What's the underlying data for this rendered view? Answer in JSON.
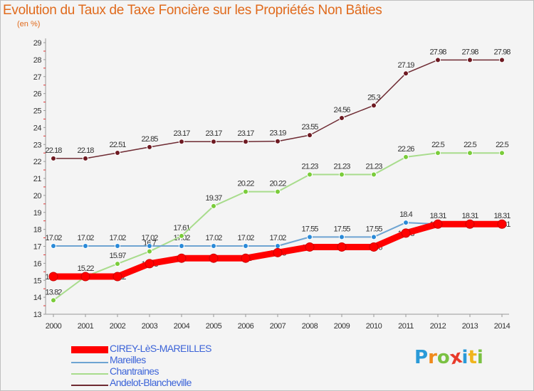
{
  "header": {
    "title": "Evolution du Taux de Taxe Foncière sur les Propriétés Non Bâties",
    "unit": "(en %)"
  },
  "logo": {
    "letters": [
      "P",
      "r",
      "o",
      "x",
      "i",
      "t",
      "i"
    ],
    "colors": [
      "#2a9ad8",
      "#f08a1c",
      "#7ac142",
      "#e83a2a",
      "#2a9ad8",
      "#f0b41c",
      "#7ac142"
    ]
  },
  "chart_data": {
    "type": "line",
    "x": [
      "2000",
      "2001",
      "2002",
      "2003",
      "2004",
      "2005",
      "2006",
      "2007",
      "2008",
      "2009",
      "2010",
      "2011",
      "2012",
      "2013",
      "2014"
    ],
    "ylim": [
      13,
      29
    ],
    "yticks": [
      "13",
      "14",
      "15",
      "16",
      "17",
      "18",
      "19",
      "20",
      "21",
      "22",
      "23",
      "24",
      "25",
      "26",
      "27",
      "28",
      "29"
    ],
    "grid": false,
    "legend_position": "bottom-left",
    "series": [
      {
        "name": "CIREY-LèS-MAREILLES",
        "color": "#ff0000",
        "values": [
          15.22,
          15.22,
          15.22,
          15.98,
          16.3,
          16.3,
          16.3,
          16.63,
          16.96,
          16.96,
          16.96,
          17.78,
          18.31,
          18.31,
          18.31
        ],
        "labels": [
          "15.22",
          "15.22",
          "15.22",
          "15.98",
          "16.3",
          "16.3",
          "16.3",
          "16.63",
          "16.96",
          "16.96",
          "16.96",
          "17.78",
          "18.31",
          "18.31",
          "18.31"
        ]
      },
      {
        "name": "Mareilles",
        "color": "#6ea4d2",
        "values": [
          17.02,
          17.02,
          17.02,
          17.02,
          17.02,
          17.02,
          17.02,
          17.02,
          17.55,
          17.55,
          17.55,
          18.4,
          18.31,
          18.31,
          18.31
        ],
        "labels": [
          "17.02",
          "17.02",
          "17.02",
          "17.02",
          "17.02",
          "17.02",
          "17.02",
          "17.02",
          "17.55",
          "17.55",
          "17.55",
          "18.4",
          "18.31",
          "18.31",
          "18.31"
        ]
      },
      {
        "name": "Chantraines",
        "color": "#a8dc8c",
        "values": [
          13.82,
          15.22,
          15.97,
          16.7,
          17.61,
          19.37,
          20.22,
          20.22,
          21.23,
          21.23,
          21.23,
          22.26,
          22.5,
          22.5,
          22.5
        ],
        "labels": [
          "13.82",
          "15.22",
          "15.97",
          "16.7",
          "17.61",
          "19.37",
          "20.22",
          "20.22",
          "21.23",
          "21.23",
          "21.23",
          "22.26",
          "22.5",
          "22.5",
          "22.5"
        ]
      },
      {
        "name": "Andelot-Blancheville",
        "color": "#6e2a32",
        "values": [
          22.18,
          22.18,
          22.51,
          22.85,
          23.17,
          23.17,
          23.17,
          23.19,
          23.55,
          24.56,
          25.3,
          27.19,
          27.98,
          27.98,
          27.98
        ],
        "labels": [
          "22.18",
          "22.18",
          "22.51",
          "22.85",
          "23.17",
          "23.17",
          "23.17",
          "23.19",
          "23.55",
          "24.56",
          "25.3",
          "27.19",
          "27.98",
          "27.98",
          "27.98"
        ]
      }
    ]
  }
}
